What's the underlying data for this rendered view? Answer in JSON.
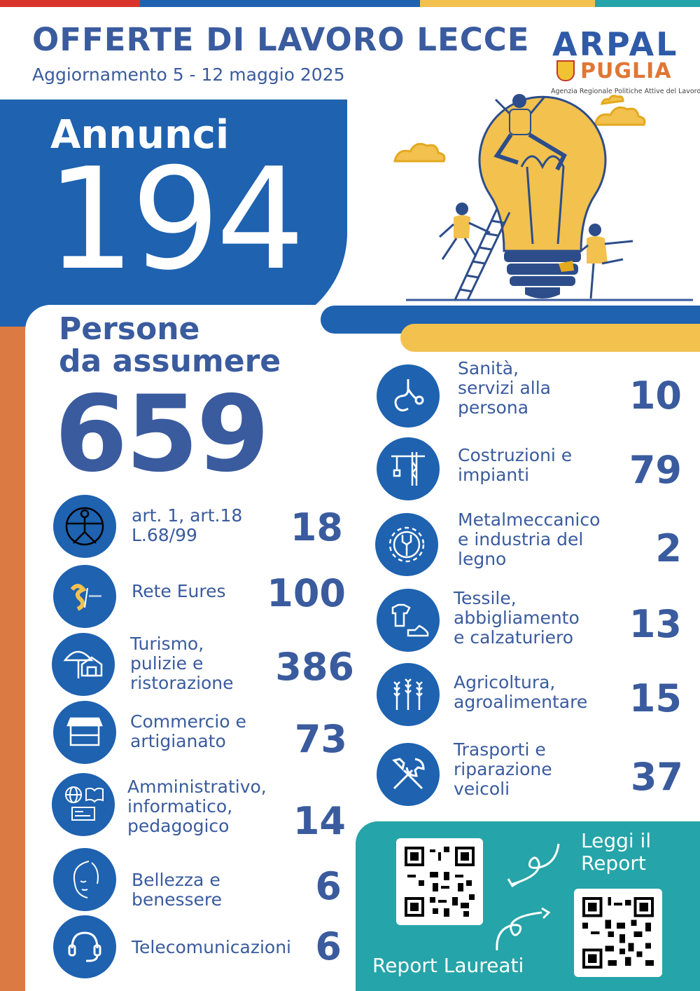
{
  "header": {
    "title": "OFFERTE DI LAVORO LECCE",
    "subtitle": "Aggiornamento 5 - 12 maggio 2025"
  },
  "logo": {
    "name_top": "ARPAL",
    "name_bottom": "PUGLIA",
    "agency": "Agenzia Regionale Politiche Attive del Lavoro"
  },
  "annunci": {
    "label": "Annunci",
    "value": "194"
  },
  "persone": {
    "label_line1": "Persone",
    "label_line2": "da assumere",
    "value": "659"
  },
  "left_sectors": [
    {
      "icon": "vitruvian-icon",
      "label": [
        "art. 1, art.18",
        "L.68/99"
      ],
      "value": "18"
    },
    {
      "icon": "eures-logo-icon",
      "label": [
        "Rete Eures"
      ],
      "value": "100"
    },
    {
      "icon": "umbrella-house-icon",
      "label": [
        "Turismo,",
        "pulizie e",
        "ristorazione"
      ],
      "value": "386"
    },
    {
      "icon": "market-stall-icon",
      "label": [
        "Commercio e",
        "artigianato"
      ],
      "value": "73"
    },
    {
      "icon": "globe-book-icon",
      "label": [
        "Amministrativo,",
        "informatico,",
        "pedagogico"
      ],
      "value": "14"
    },
    {
      "icon": "woman-face-icon",
      "label": [
        "Bellezza e",
        "benessere"
      ],
      "value": "6"
    },
    {
      "icon": "headset-icon",
      "label": [
        "Telecomunicazioni"
      ],
      "value": "6"
    }
  ],
  "right_sectors": [
    {
      "icon": "stethoscope-icon",
      "label": [
        "Sanità,",
        "servizi alla",
        "persona"
      ],
      "value": "10"
    },
    {
      "icon": "crane-icon",
      "label": [
        "Costruzioni e",
        "impianti"
      ],
      "value": "79"
    },
    {
      "icon": "gear-wrench-icon",
      "label": [
        "Metalmeccanico",
        "e industria del",
        "legno"
      ],
      "value": "2"
    },
    {
      "icon": "shirt-shoe-icon",
      "label": [
        "Tessile,",
        "abbigliamento",
        "e calzaturiero"
      ],
      "value": "13"
    },
    {
      "icon": "wheat-icon",
      "label": [
        "Agricoltura,",
        "agroalimentare"
      ],
      "value": "15"
    },
    {
      "icon": "tools-icon",
      "label": [
        "Trasporti e",
        "riparazione",
        "veicoli"
      ],
      "value": "37"
    }
  ],
  "qr_panel": {
    "read_report": [
      "Leggi il",
      "Report"
    ],
    "graduates_report": "Report Laureati"
  },
  "colors": {
    "navy": "#3a5b9e",
    "blue": "#1e62b0",
    "orange": "#dc7a43",
    "yellow": "#f2c14e",
    "teal": "#25a4a9"
  }
}
